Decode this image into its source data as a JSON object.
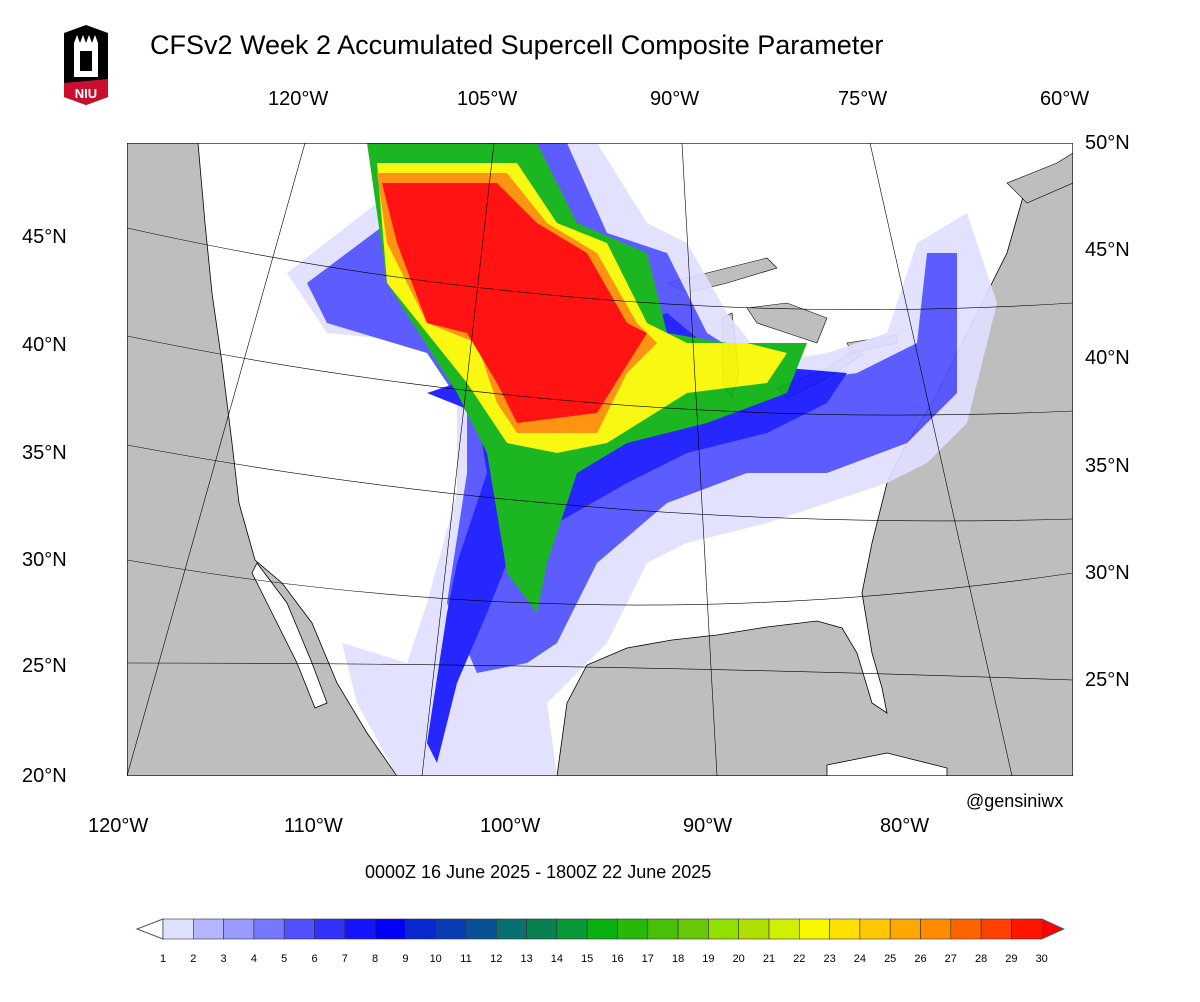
{
  "title": "CFSv2 Week 2 Accumulated Supercell Composite Parameter",
  "logo": {
    "text": "NIU",
    "colors": {
      "black": "#000000",
      "red": "#c8102e"
    }
  },
  "top_lon_labels": [
    "120°W",
    "105°W",
    "90°W",
    "75°W",
    "60°W"
  ],
  "bottom_lon_labels": [
    "120°W",
    "110°W",
    "100°W",
    "90°W",
    "80°W"
  ],
  "left_lat_labels": [
    "45°N",
    "40°N",
    "35°N",
    "30°N",
    "25°N",
    "20°N"
  ],
  "right_lat_labels": [
    "50°N",
    "45°N",
    "40°N",
    "35°N",
    "30°N",
    "25°N"
  ],
  "credit": "@gensiniwx",
  "valid_period": "0000Z 16  June  2025  - 1800Z 22  June  2025",
  "colorbar": {
    "labels": [
      "1",
      "2",
      "3",
      "4",
      "5",
      "6",
      "7",
      "8",
      "9",
      "10",
      "11",
      "12",
      "13",
      "14",
      "15",
      "16",
      "17",
      "18",
      "19",
      "20",
      "21",
      "22",
      "23",
      "24",
      "25",
      "26",
      "27",
      "28",
      "29",
      "30"
    ],
    "colors": [
      "#e0e0ff",
      "#b4b4ff",
      "#9a9aff",
      "#7878ff",
      "#5050ff",
      "#3232ff",
      "#1414ff",
      "#0000f8",
      "#0a28d0",
      "#0a3cb4",
      "#0a5096",
      "#087070",
      "#088050",
      "#089838",
      "#08b010",
      "#28b808",
      "#48c008",
      "#68c808",
      "#90e000",
      "#b0e000",
      "#d0f000",
      "#f8f800",
      "#ffe000",
      "#ffc800",
      "#ffa800",
      "#ff8c00",
      "#ff6400",
      "#ff4000",
      "#ff1400"
    ],
    "under_color": "#ffffff",
    "over_color": "#ff0000"
  },
  "map_colors": {
    "ocean": "#bebebe",
    "land": "#ffffff"
  }
}
